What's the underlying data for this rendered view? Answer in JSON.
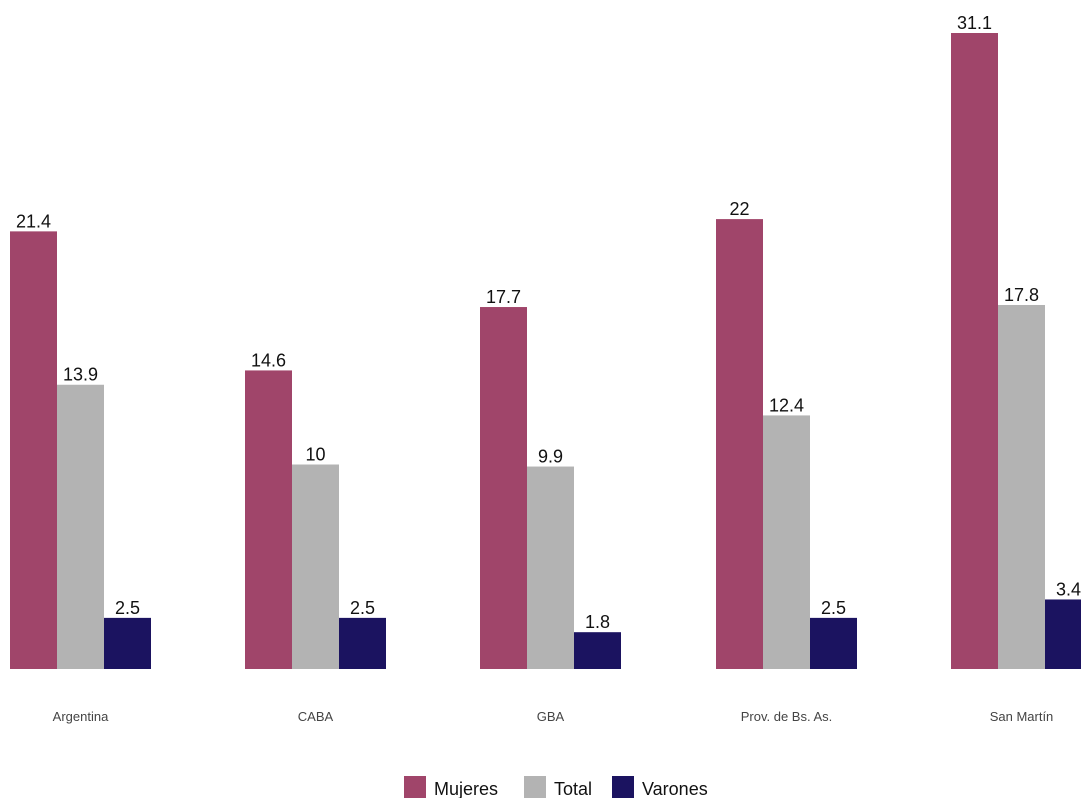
{
  "chart_data": {
    "type": "bar",
    "title": "",
    "xlabel": "",
    "ylabel": "",
    "ylim": [
      0,
      32
    ],
    "grid": false,
    "legend_position": "bottom",
    "categories": [
      "Argentina",
      "CABA",
      "GBA",
      "Prov. de Bs. As.",
      "San Martín"
    ],
    "series": [
      {
        "name": "Mujeres",
        "color": "#a0456a",
        "values": [
          21.4,
          14.6,
          17.7,
          22,
          31.1
        ]
      },
      {
        "name": "Total",
        "color": "#b3b3b3",
        "values": [
          13.9,
          10,
          9.9,
          12.4,
          17.8
        ]
      },
      {
        "name": "Varones",
        "color": "#1b1360",
        "values": [
          2.5,
          2.5,
          1.8,
          2.5,
          3.4
        ]
      }
    ]
  }
}
